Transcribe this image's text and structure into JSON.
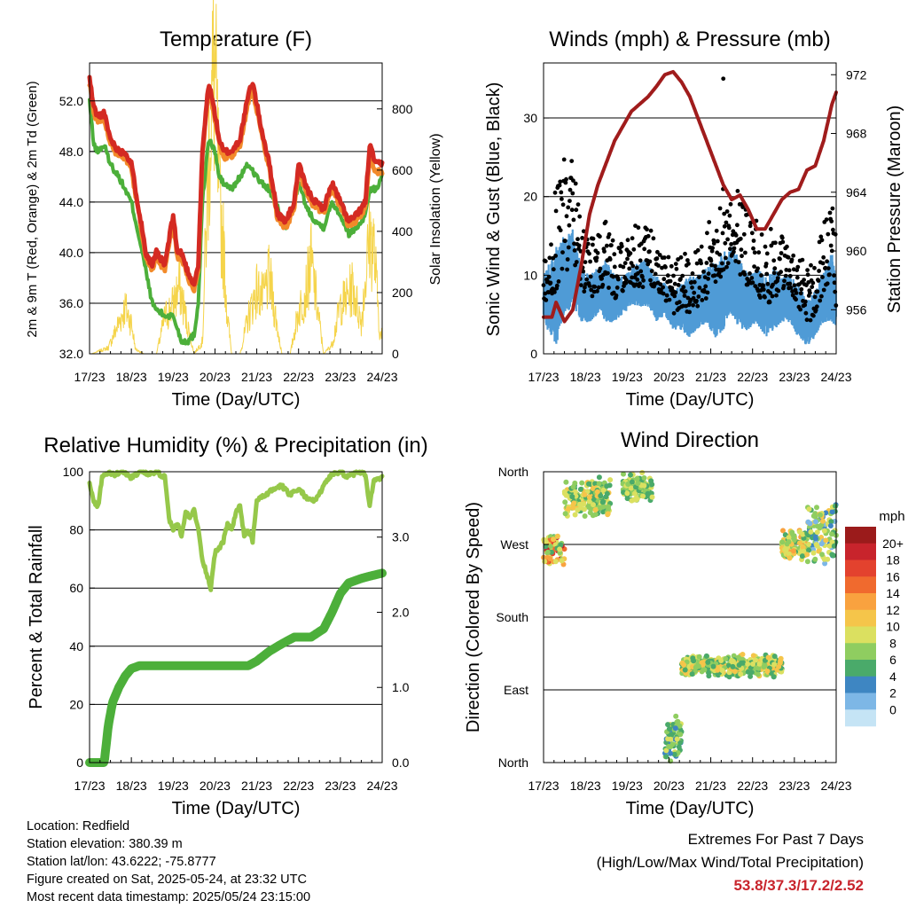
{
  "x_ticks": [
    "17/23",
    "18/23",
    "19/23",
    "20/23",
    "21/23",
    "22/23",
    "23/23",
    "24/23"
  ],
  "x_label": "Time (Day/UTC)",
  "colors": {
    "temp_2m": "#d42a22",
    "temp_9m": "#f28a2a",
    "dewpoint": "#4caf3a",
    "solar": "#f5d44a",
    "wind": "#4f9bd6",
    "gust": "#000000",
    "pressure": "#a01c1c",
    "rh": "#96c84a",
    "precip": "#4caf3a"
  },
  "chart_data": [
    {
      "type": "line",
      "title": "Temperature (F)",
      "xlabel": "Time (Day/UTC)",
      "ylabel": "2m & 9m T (Red, Orange) & 2m Td (Green)",
      "y2label": "Solar Insolation (Yellow)",
      "ylim": [
        32,
        55
      ],
      "yticks": [
        "32.0",
        "36.0",
        "40.0",
        "44.0",
        "48.0",
        "52.0"
      ],
      "y2lim": [
        0,
        950
      ],
      "y2ticks": [
        "0",
        "200",
        "400",
        "600",
        "800"
      ],
      "xlim": [
        0,
        7
      ],
      "x": [
        0,
        0.1,
        0.2,
        0.35,
        0.5,
        0.7,
        0.85,
        1.0,
        1.2,
        1.35,
        1.5,
        1.6,
        1.8,
        2.0,
        2.1,
        2.2,
        2.35,
        2.5,
        2.6,
        2.7,
        2.85,
        3.0,
        3.1,
        3.2,
        3.4,
        3.6,
        3.8,
        3.9,
        4.1,
        4.3,
        4.5,
        4.7,
        4.9,
        5.0,
        5.2,
        5.4,
        5.6,
        5.8,
        6.0,
        6.2,
        6.4,
        6.6,
        6.7,
        6.85,
        7.0
      ],
      "series": [
        {
          "name": "2m T",
          "values": [
            53.8,
            51.5,
            50.8,
            51,
            49,
            48,
            48,
            47,
            43,
            40,
            39,
            40,
            39,
            43,
            40,
            40,
            38.5,
            37.5,
            39,
            48,
            53.5,
            51,
            49,
            48,
            48,
            49,
            52.5,
            53.5,
            50,
            47,
            43,
            42.5,
            44,
            47,
            45,
            44,
            43.5,
            45.5,
            44,
            42.5,
            43,
            44,
            48.5,
            47,
            47
          ]
        },
        {
          "name": "9m T",
          "values": [
            53.4,
            51,
            50.5,
            50.6,
            48.6,
            47.6,
            47.6,
            46.6,
            42.6,
            39.6,
            38.6,
            39.6,
            38.6,
            42.6,
            39.6,
            39.6,
            38,
            37.2,
            38.6,
            47.6,
            53,
            50.6,
            48.6,
            47.6,
            47.6,
            48.6,
            52,
            53,
            49.6,
            46.6,
            42.6,
            42,
            43.6,
            46.6,
            44.6,
            43.6,
            43.2,
            45,
            43.6,
            42.2,
            42.6,
            43.6,
            47.6,
            46.4,
            46.4
          ]
        },
        {
          "name": "2m Td",
          "values": [
            52,
            48.5,
            48,
            48.5,
            47,
            46,
            45,
            44,
            41,
            38.5,
            36,
            35.5,
            35,
            35,
            34,
            33,
            33,
            33.5,
            36,
            44,
            49,
            48,
            46,
            45.5,
            45,
            46,
            47,
            46.5,
            45.5,
            45,
            43.5,
            42,
            44,
            45.5,
            43.5,
            42.5,
            42,
            44,
            43,
            41.5,
            42,
            43,
            45,
            45,
            46
          ]
        }
      ],
      "solar": {
        "x": [
          0.05,
          0.25,
          0.45,
          0.85,
          1.0,
          1.1,
          1.3,
          1.6,
          1.8,
          2.0,
          2.15,
          2.3,
          2.5,
          2.7,
          2.8,
          2.9,
          3.0,
          3.1,
          3.2,
          3.3,
          3.4,
          3.6,
          3.8,
          4.0,
          4.15,
          4.3,
          4.5,
          4.6,
          4.8,
          5.0,
          5.15,
          5.3,
          5.5,
          5.6,
          5.8,
          6.0,
          6.15,
          6.3,
          6.5,
          6.6,
          6.7,
          6.8,
          6.95
        ],
        "values": [
          0,
          10,
          20,
          150,
          100,
          15,
          0,
          0,
          120,
          160,
          220,
          120,
          0,
          40,
          450,
          800,
          920,
          500,
          350,
          120,
          0,
          0,
          120,
          210,
          180,
          250,
          80,
          0,
          0,
          140,
          190,
          300,
          100,
          0,
          30,
          160,
          180,
          220,
          100,
          250,
          380,
          350,
          60
        ]
      }
    },
    {
      "type": "scatter",
      "title": "Winds (mph) & Pressure (mb)",
      "xlabel": "Time (Day/UTC)",
      "ylabel": "Sonic Wind & Gust (Blue, Black)",
      "y2label": "Station Pressure (Maroon)",
      "ylim": [
        0,
        37
      ],
      "yticks": [
        "0",
        "10",
        "20",
        "30"
      ],
      "y2lim": [
        953,
        972.8
      ],
      "y2ticks": [
        "956",
        "960",
        "964",
        "968",
        "972"
      ],
      "xlim": [
        0,
        7
      ],
      "wind_envelope": {
        "x": [
          0,
          0.3,
          0.5,
          0.7,
          0.9,
          1.1,
          1.3,
          1.5,
          1.7,
          1.9,
          2.1,
          2.3,
          2.5,
          2.7,
          2.9,
          3.1,
          3.3,
          3.5,
          3.7,
          3.9,
          4.1,
          4.3,
          4.5,
          4.7,
          4.9,
          5.1,
          5.3,
          5.5,
          5.7,
          5.9,
          6.1,
          6.3,
          6.5,
          6.7,
          6.9,
          7.0
        ],
        "low": [
          4,
          1,
          5,
          6,
          4,
          4,
          5,
          4,
          4,
          5,
          6,
          6,
          6,
          4,
          5,
          3,
          3,
          2,
          3,
          4,
          2,
          3,
          5,
          3,
          3,
          4,
          2,
          3,
          4,
          4,
          2,
          1,
          2,
          4,
          4,
          3
        ],
        "high": [
          10,
          14,
          15,
          16,
          11,
          10,
          11,
          12,
          10,
          10,
          11,
          12,
          12,
          10,
          9,
          8,
          9,
          10,
          10,
          11,
          12,
          13,
          14,
          12,
          10,
          11,
          10,
          11,
          10,
          10,
          9,
          7,
          8,
          11,
          13,
          10
        ]
      },
      "gust_envelope": {
        "x": [
          0,
          0.3,
          0.5,
          0.7,
          0.9,
          1.1,
          1.3,
          1.5,
          1.7,
          1.9,
          2.1,
          2.3,
          2.5,
          2.7,
          2.9,
          3.1,
          3.3,
          3.5,
          3.7,
          3.9,
          4.1,
          4.3,
          4.5,
          4.7,
          4.9,
          5.1,
          5.3,
          5.5,
          5.7,
          5.9,
          6.1,
          6.3,
          6.5,
          6.7,
          6.9,
          7.0
        ],
        "low": [
          6,
          8,
          10,
          12,
          8,
          7,
          8,
          9,
          7,
          8,
          9,
          8,
          9,
          8,
          7,
          5,
          6,
          5,
          6,
          7,
          9,
          10,
          11,
          10,
          8,
          8,
          6,
          7,
          8,
          8,
          6,
          3,
          5,
          8,
          9,
          6
        ],
        "high": [
          12,
          22,
          28,
          27,
          17,
          15,
          16,
          17,
          14,
          14,
          16,
          18,
          17,
          14,
          13,
          12,
          13,
          13,
          14,
          16,
          19,
          22,
          24,
          23,
          18,
          17,
          16,
          16,
          15,
          14,
          13,
          11,
          12,
          17,
          19,
          15
        ]
      },
      "gust_peak": 35,
      "pressure": {
        "x": [
          0,
          0.2,
          0.3,
          0.5,
          0.7,
          0.9,
          1.1,
          1.3,
          1.5,
          1.7,
          1.9,
          2.1,
          2.3,
          2.5,
          2.7,
          2.9,
          3.1,
          3.3,
          3.5,
          3.7,
          3.9,
          4.1,
          4.3,
          4.5,
          4.7,
          4.9,
          5.1,
          5.3,
          5.5,
          5.7,
          5.9,
          6.1,
          6.3,
          6.5,
          6.7,
          6.9,
          7.0
        ],
        "values": [
          955.5,
          955.5,
          956.5,
          955.2,
          956,
          959,
          962.5,
          964.5,
          966,
          967.5,
          968.5,
          969.5,
          970,
          970.5,
          971.2,
          972,
          972.2,
          971.5,
          970.5,
          969,
          967.5,
          966,
          964.5,
          963.5,
          963.8,
          962.8,
          961.5,
          961.5,
          962.5,
          963.5,
          964,
          964.2,
          965.5,
          965.8,
          967.5,
          970,
          970.8
        ]
      }
    },
    {
      "type": "line",
      "title": "Relative Humidity (%) & Precipitation (in)",
      "xlabel": "Time (Day/UTC)",
      "ylabel": "Percent & Total Rainfall",
      "ylim": [
        0,
        100
      ],
      "yticks": [
        "0",
        "20",
        "40",
        "60",
        "80",
        "100"
      ],
      "y2lim": [
        0,
        3.87
      ],
      "y2ticks": [
        "0.0",
        "1.0",
        "2.0",
        "3.0"
      ],
      "xlim": [
        0,
        7
      ],
      "series": [
        {
          "name": "RH",
          "x": [
            0,
            0.1,
            0.2,
            0.3,
            0.45,
            0.6,
            0.8,
            1.0,
            1.2,
            1.4,
            1.6,
            1.8,
            1.9,
            2.0,
            2.1,
            2.2,
            2.3,
            2.4,
            2.5,
            2.6,
            2.7,
            2.8,
            2.9,
            3.0,
            3.1,
            3.2,
            3.3,
            3.4,
            3.5,
            3.6,
            3.7,
            3.8,
            3.9,
            4.0,
            4.2,
            4.4,
            4.6,
            4.8,
            5.0,
            5.2,
            5.4,
            5.6,
            5.8,
            6.0,
            6.2,
            6.4,
            6.6,
            6.7,
            6.8,
            7.0
          ],
          "values": [
            96,
            90,
            88,
            98,
            100,
            99,
            100,
            98,
            100,
            99,
            100,
            98,
            84,
            80,
            82,
            78,
            86,
            84,
            87,
            80,
            70,
            65,
            60,
            72,
            74,
            76,
            82,
            80,
            86,
            88,
            78,
            80,
            76,
            90,
            92,
            94,
            95,
            92,
            94,
            91,
            90,
            95,
            99,
            100,
            98,
            100,
            99,
            88,
            97,
            98
          ]
        },
        {
          "name": "Total Rainfall",
          "x": [
            0,
            0.35,
            0.45,
            0.55,
            0.7,
            0.85,
            1.0,
            1.2,
            1.5,
            2.0,
            3.0,
            3.8,
            4.0,
            4.3,
            4.6,
            4.9,
            5.3,
            5.6,
            5.8,
            6.0,
            6.2,
            6.5,
            6.7,
            7.0
          ],
          "values": [
            0,
            0,
            0.5,
            0.8,
            1.0,
            1.15,
            1.25,
            1.29,
            1.29,
            1.29,
            1.29,
            1.29,
            1.35,
            1.48,
            1.58,
            1.67,
            1.67,
            1.78,
            2.0,
            2.25,
            2.39,
            2.45,
            2.48,
            2.52
          ]
        }
      ]
    },
    {
      "type": "scatter",
      "title": "Wind Direction",
      "xlabel": "Time (Day/UTC)",
      "ylabel": "Direction (Colored By Speed)",
      "yticks": [
        "North",
        "East",
        "South",
        "West",
        "North"
      ],
      "ylim": [
        0,
        360
      ],
      "xlim": [
        0,
        7
      ],
      "colorbar": {
        "unit": "mph",
        "labels": [
          "20+",
          "18",
          "16",
          "14",
          "12",
          "10",
          "8",
          "6",
          "4",
          "2",
          "0"
        ],
        "colors": [
          "#9b1b1b",
          "#c8242c",
          "#e3422e",
          "#f06a2e",
          "#f9a23f",
          "#f5c54a",
          "#dbe060",
          "#8fcd60",
          "#4aaa6a",
          "#3e86c2",
          "#7db7e6",
          "#c5e4f5"
        ]
      },
      "clusters": [
        {
          "x": [
            0,
            0.5
          ],
          "dir": [
            240,
            290
          ],
          "speed": [
            4,
            18
          ]
        },
        {
          "x": [
            0.5,
            1.6
          ],
          "dir": [
            300,
            355
          ],
          "speed": [
            3,
            10
          ]
        },
        {
          "x": [
            1.9,
            2.6
          ],
          "dir": [
            320,
            360
          ],
          "speed": [
            3,
            9
          ]
        },
        {
          "x": [
            2.9,
            3.3
          ],
          "dir": [
            0,
            60
          ],
          "speed": [
            2,
            8
          ]
        },
        {
          "x": [
            3.3,
            5.7
          ],
          "dir": [
            105,
            135
          ],
          "speed": [
            3,
            11
          ]
        },
        {
          "x": [
            5.7,
            6.3
          ],
          "dir": [
            250,
            290
          ],
          "speed": [
            4,
            12
          ]
        },
        {
          "x": [
            6.3,
            7.0
          ],
          "dir": [
            240,
            330
          ],
          "speed": [
            0,
            10
          ]
        }
      ]
    }
  ],
  "station": {
    "location": "Location: Redfield",
    "elevation": "Station elevation: 380.39 m",
    "latlon": "Station lat/lon: 43.6222; -75.8777",
    "created": "Figure created on Sat, 2025-05-24, at 23:32 UTC",
    "timestamp": "Most recent data timestamp: 2025/05/24 23:15:00"
  },
  "extremes": {
    "heading": "Extremes For Past 7 Days",
    "subheading": "(High/Low/Max Wind/Total Precipitation)",
    "values": "53.8/37.3/17.2/2.52"
  }
}
